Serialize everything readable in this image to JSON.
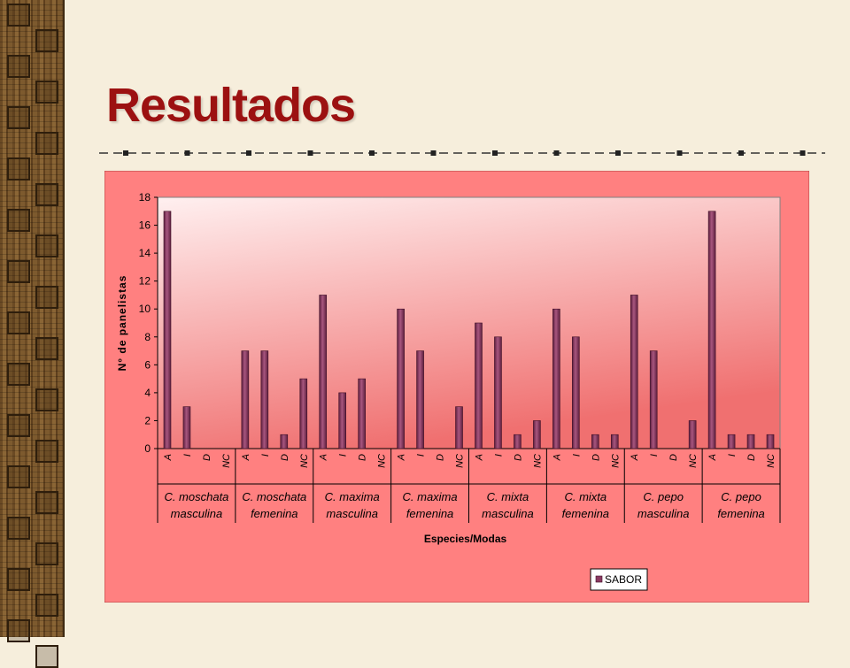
{
  "slide": {
    "title": "Resultados",
    "colors": {
      "title": "#9C1111",
      "chart_bg": "#FF8080",
      "bar": "#8B3A62",
      "background": "#F6EEDC"
    }
  },
  "chart_data": {
    "type": "bar",
    "title": "",
    "xlabel": "Especies/Modas",
    "ylabel": "N° de panelistas",
    "ylim": [
      0,
      18
    ],
    "yticks": [
      0,
      2,
      4,
      6,
      8,
      10,
      12,
      14,
      16,
      18
    ],
    "grid": false,
    "legend": "bottom-right",
    "groups": [
      {
        "label": [
          "C. moschata",
          "masculina"
        ],
        "categories": [
          "A",
          "I",
          "D",
          "NC"
        ],
        "values": [
          17,
          3,
          0,
          0
        ]
      },
      {
        "label": [
          "C. moschata",
          "femenina"
        ],
        "categories": [
          "A",
          "I",
          "D",
          "NC"
        ],
        "values": [
          7,
          7,
          1,
          5
        ]
      },
      {
        "label": [
          "C. maxima",
          "masculina"
        ],
        "categories": [
          "A",
          "I",
          "D",
          "NC"
        ],
        "values": [
          11,
          4,
          5,
          0
        ]
      },
      {
        "label": [
          "C. maxima",
          "femenina"
        ],
        "categories": [
          "A",
          "I",
          "D",
          "NC"
        ],
        "values": [
          10,
          7,
          0,
          3
        ]
      },
      {
        "label": [
          "C. mixta",
          "masculina"
        ],
        "categories": [
          "A",
          "I",
          "D",
          "NC"
        ],
        "values": [
          9,
          8,
          1,
          2
        ]
      },
      {
        "label": [
          "C. mixta",
          "femenina"
        ],
        "categories": [
          "A",
          "I",
          "D",
          "NC"
        ],
        "values": [
          10,
          8,
          1,
          1
        ]
      },
      {
        "label": [
          "C. pepo",
          "masculina"
        ],
        "categories": [
          "A",
          "I",
          "D",
          "NC"
        ],
        "values": [
          11,
          7,
          0,
          2
        ]
      },
      {
        "label": [
          "C. pepo",
          "femenina"
        ],
        "categories": [
          "A",
          "I",
          "D",
          "NC"
        ],
        "values": [
          17,
          1,
          1,
          1
        ]
      }
    ],
    "series": [
      {
        "name": "SABOR"
      }
    ]
  }
}
